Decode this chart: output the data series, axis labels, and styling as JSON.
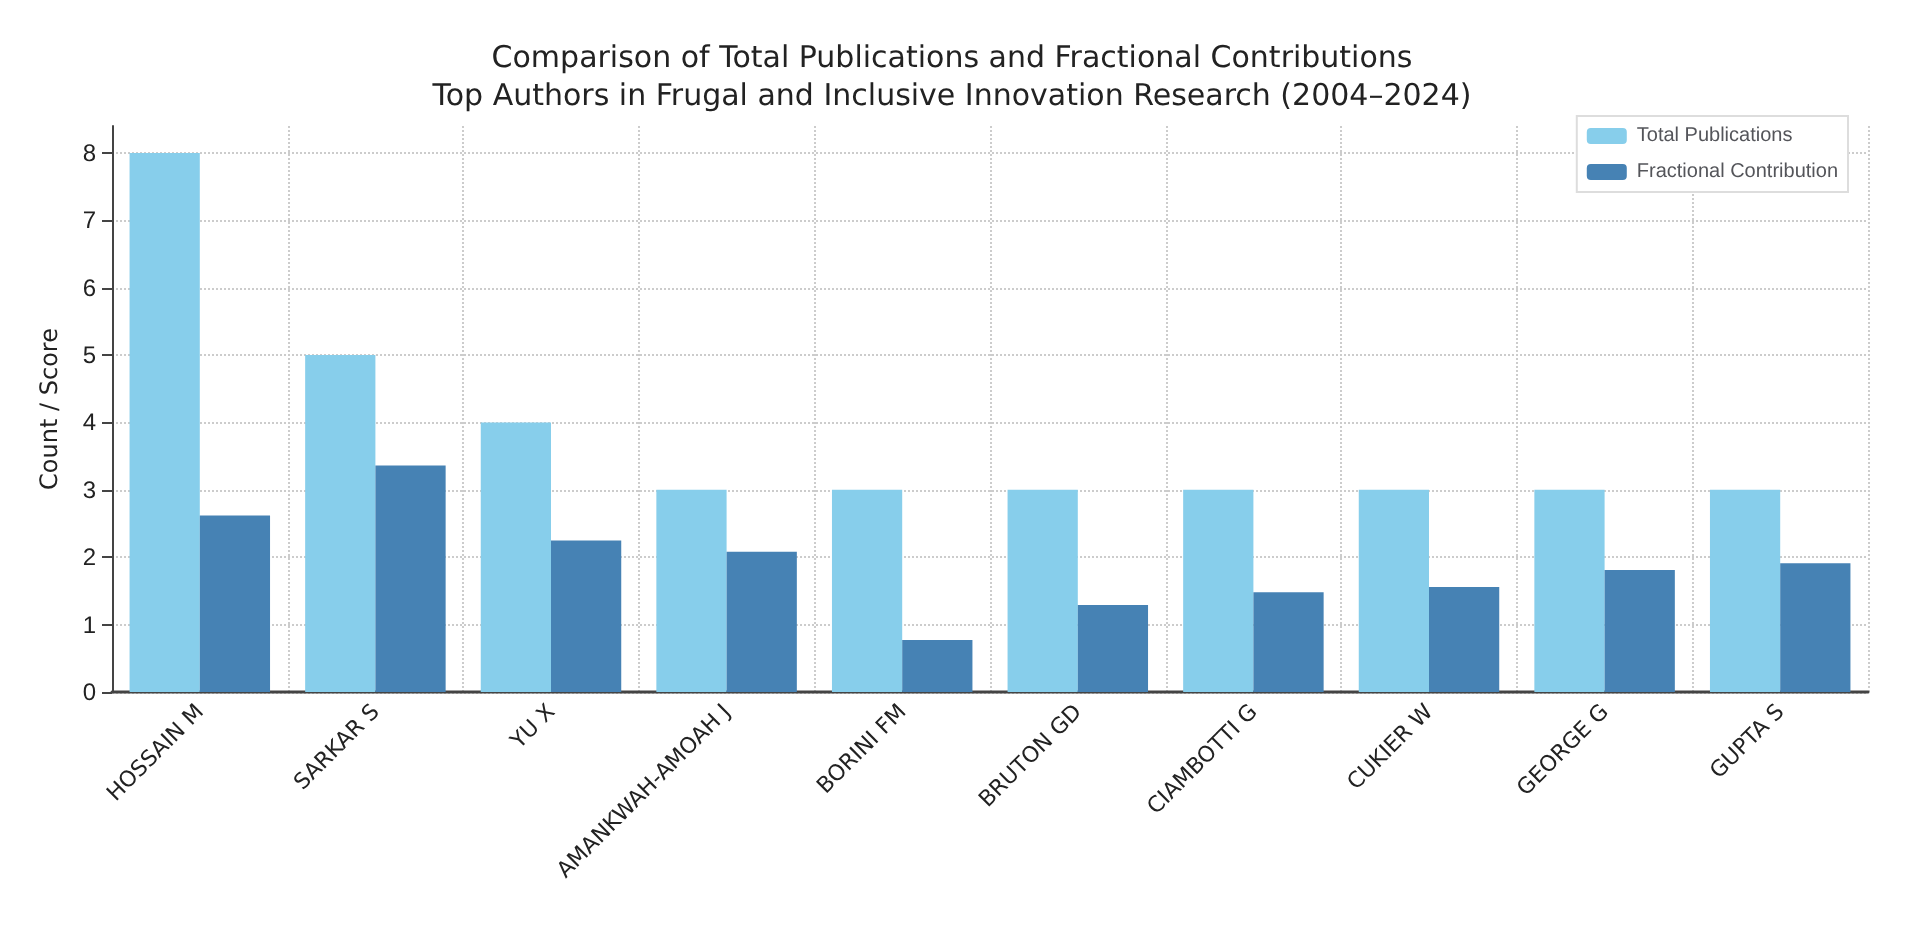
{
  "chart_data": {
    "type": "bar",
    "title": "Comparison of Total Publications and Fractional Contributions\nTop Authors in Frugal and Inclusive Innovation Research (2004–2024)",
    "ylabel": "Count / Score",
    "categories": [
      "HOSSAIN M",
      "SARKAR S",
      "YU X",
      "AMANKWAH-AMOAH J",
      "BORINI FM",
      "BRUTON GD",
      "CIAMBOTTI G",
      "CUKIER W",
      "GEORGE G",
      "GUPTA S"
    ],
    "series": [
      {
        "name": "Total Publications",
        "color": "#87ceeb",
        "values": [
          8,
          5,
          4,
          3,
          3,
          3,
          3,
          3,
          3,
          3
        ]
      },
      {
        "name": "Fractional Contribution",
        "color": "#4682b4",
        "values": [
          2.62,
          3.36,
          2.25,
          2.08,
          0.77,
          1.29,
          1.48,
          1.56,
          1.81,
          1.91
        ]
      }
    ],
    "ylim": [
      0,
      8.4
    ],
    "yticks": [
      0,
      1,
      2,
      3,
      4,
      5,
      6,
      7,
      8
    ],
    "grid": true,
    "legend": "top right"
  }
}
